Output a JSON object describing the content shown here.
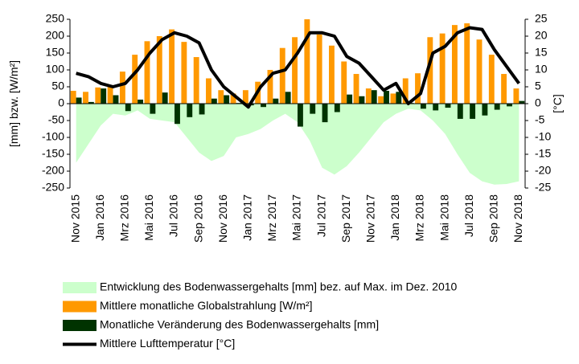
{
  "chart_data": {
    "type": "combo",
    "y_label": "[mm] bzw. [W/m²]",
    "y2_label": "[°C]",
    "categories": [
      "Nov 2015",
      null,
      "Jan 2016",
      null,
      "Mrz 2016",
      null,
      "Mai 2016",
      null,
      "Jul 2016",
      null,
      "Sep 2016",
      null,
      "Nov 2016",
      null,
      "Jan 2017",
      null,
      "Mrz 2017",
      null,
      "Mai 2017",
      null,
      "Jul 2017",
      null,
      "Sep 2017",
      null,
      "Nov 2017",
      null,
      "Jan 2018",
      null,
      "Mrz 2018",
      null,
      "Mai 2018",
      null,
      "Jul 2018",
      null,
      "Sep 2018",
      null,
      "Nov 2018"
    ],
    "ylim": [
      -250,
      250
    ],
    "yticks": [
      -250,
      -200,
      -150,
      -100,
      -50,
      0,
      50,
      100,
      150,
      200,
      250
    ],
    "y2lim": [
      -25,
      25
    ],
    "y2ticks": [
      -25,
      -20,
      -15,
      -10,
      -5,
      0,
      5,
      10,
      15,
      20,
      25
    ],
    "series": [
      {
        "name": "Entwicklung des Bodenwassergehalts [mm] bez. auf Max. im Dez. 2010",
        "kind": "area",
        "color": "#ccffcc",
        "values": [
          -175,
          -120,
          -65,
          -30,
          -35,
          -20,
          -45,
          -50,
          -55,
          -100,
          -145,
          -170,
          -155,
          -100,
          -90,
          -75,
          -50,
          -30,
          -55,
          -110,
          -190,
          -210,
          -185,
          -145,
          -100,
          -55,
          -30,
          -15,
          -20,
          -50,
          -90,
          -150,
          -205,
          -230,
          -240,
          -238,
          -230
        ]
      },
      {
        "name": "Mittlere monatliche Globalstrahlung [W/m²]",
        "kind": "bar",
        "color": "#ff9900",
        "values": [
          38,
          35,
          48,
          55,
          95,
          145,
          185,
          200,
          220,
          183,
          138,
          75,
          40,
          30,
          40,
          65,
          100,
          165,
          197,
          250,
          205,
          172,
          125,
          88,
          45,
          22,
          30,
          75,
          90,
          197,
          208,
          233,
          238,
          190,
          145,
          88,
          45
        ]
      },
      {
        "name": "Monatliche Veränderung des Bodenwassergehalts [mm]",
        "kind": "bar",
        "color": "#003300",
        "values": [
          18,
          5,
          45,
          25,
          -22,
          12,
          -30,
          33,
          -60,
          -40,
          -32,
          15,
          25,
          2,
          -5,
          -10,
          15,
          35,
          -68,
          -30,
          -55,
          -25,
          27,
          22,
          40,
          38,
          35,
          2,
          -15,
          -20,
          -12,
          -45,
          -45,
          -35,
          -18,
          -8,
          8
        ]
      },
      {
        "name": "Mittlere Lufttemperatur [°C]",
        "kind": "line",
        "axis": "y2",
        "color": "#000000",
        "values": [
          9,
          8,
          6,
          5,
          6,
          10,
          15,
          19,
          21,
          20,
          18,
          10,
          5,
          2,
          -1,
          5,
          9,
          10,
          15,
          21,
          21,
          20,
          14,
          12,
          8,
          4,
          6,
          0,
          3,
          15,
          17,
          21,
          22.5,
          22,
          16,
          11,
          6
        ]
      }
    ]
  }
}
